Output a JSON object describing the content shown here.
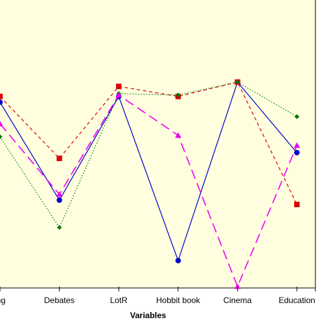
{
  "chart_data": {
    "type": "line",
    "xlabel": "Variables",
    "categories": [
      "ing",
      "Debates",
      "LotR",
      "Hobbit book",
      "Cinema",
      "Education"
    ],
    "ylim": [
      0,
      10
    ],
    "grid": false,
    "background_color": "#ffffe0",
    "series": [
      {
        "color": "#0000cc",
        "line_style": "solid",
        "marker": "circle",
        "values": [
          6.45,
          3.05,
          6.65,
          0.95,
          7.15,
          4.7
        ]
      },
      {
        "color": "#dd0000",
        "line_style": "dashed",
        "marker": "square",
        "values": [
          6.65,
          4.5,
          7.0,
          6.65,
          7.15,
          2.9
        ]
      },
      {
        "color": "#007700",
        "line_style": "dotted",
        "marker": "diamond",
        "values": [
          5.25,
          2.1,
          6.75,
          6.7,
          7.15,
          5.95
        ]
      },
      {
        "color": "#ee00ee",
        "line_style": "longdash",
        "marker": "triangle",
        "values": [
          5.7,
          3.25,
          6.7,
          5.3,
          0.05,
          4.95
        ]
      }
    ]
  }
}
